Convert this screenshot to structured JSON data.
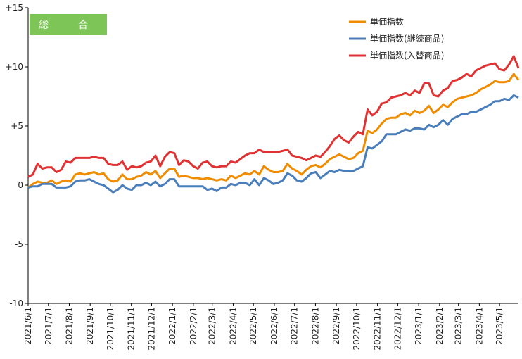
{
  "colors": {
    "axis": "#000000",
    "badge": "#7dc557"
  },
  "badge_label": "総　合",
  "chart_data": {
    "type": "line",
    "title": "",
    "xlabel": "",
    "ylabel": "",
    "ylim": [
      -10,
      15
    ],
    "yticks": [
      15,
      10,
      5,
      0,
      -5,
      -10
    ],
    "ytick_labels": [
      "+15",
      "+10",
      "+5",
      "0",
      "-5",
      "-10"
    ],
    "grid": false,
    "legend_position": "top-right",
    "x_tick_labels": [
      "2021/6/1",
      "2021/7/1",
      "2021/8/1",
      "2021/9/1",
      "2021/10/1",
      "2021/11/1",
      "2021/12/1",
      "2022/1/1",
      "2022/2/1",
      "2022/3/1",
      "2022/4/1",
      "2022/5/1",
      "2022/6/1",
      "2022/7/1",
      "2022/8/1",
      "2022/9/1",
      "2022/10/1",
      "2022/11/1",
      "2022/12/1",
      "2023/1/1",
      "2023/2/1",
      "2023/3/1",
      "2023/4/1",
      "2023/5/1"
    ],
    "x_start": "2021/6/1",
    "x_end": "2023/5/29",
    "series": [
      {
        "name": "単価指数",
        "color": "#f08c00",
        "values": [
          -0.2,
          0.1,
          0.3,
          0.2,
          0.2,
          0.4,
          0.1,
          0.3,
          0.4,
          0.3,
          0.9,
          1.0,
          0.9,
          1.0,
          1.1,
          0.9,
          1.0,
          0.5,
          0.3,
          0.4,
          0.9,
          0.5,
          0.5,
          0.7,
          0.8,
          1.1,
          0.9,
          1.2,
          0.6,
          1.0,
          1.4,
          1.4,
          0.7,
          0.8,
          0.7,
          0.6,
          0.6,
          0.5,
          0.6,
          0.5,
          0.4,
          0.5,
          0.4,
          0.8,
          0.6,
          0.8,
          1.0,
          0.9,
          1.2,
          0.9,
          1.6,
          1.3,
          1.1,
          1.1,
          1.2,
          1.8,
          1.4,
          1.2,
          0.9,
          1.3,
          1.6,
          1.7,
          1.5,
          1.8,
          2.2,
          2.4,
          2.6,
          2.4,
          2.2,
          2.3,
          2.7,
          2.9,
          4.6,
          4.4,
          4.7,
          5.2,
          5.6,
          5.7,
          5.7,
          6.0,
          6.1,
          5.9,
          6.3,
          6.1,
          6.3,
          6.7,
          6.1,
          6.4,
          6.8,
          6.6,
          7.0,
          7.3,
          7.4,
          7.5,
          7.6,
          7.8,
          8.1,
          8.3,
          8.5,
          8.8,
          8.7,
          8.7,
          8.8,
          9.4,
          8.9
        ]
      },
      {
        "name": "単価指数(継続商品)",
        "color": "#4a7ebb",
        "values": [
          -0.2,
          -0.1,
          -0.1,
          0.1,
          0.1,
          0.1,
          -0.2,
          -0.2,
          -0.2,
          -0.1,
          0.3,
          0.4,
          0.4,
          0.5,
          0.3,
          0.1,
          0.0,
          -0.3,
          -0.6,
          -0.4,
          0.0,
          -0.3,
          -0.4,
          0.0,
          0.0,
          0.2,
          0.0,
          0.3,
          -0.1,
          0.1,
          0.5,
          0.5,
          -0.1,
          -0.1,
          -0.1,
          -0.1,
          -0.1,
          -0.1,
          -0.4,
          -0.3,
          -0.5,
          -0.2,
          -0.2,
          0.1,
          0.0,
          0.2,
          0.2,
          0.0,
          0.5,
          0.0,
          0.6,
          0.4,
          0.1,
          0.2,
          0.4,
          1.0,
          0.8,
          0.4,
          0.3,
          0.6,
          1.0,
          1.1,
          0.6,
          0.9,
          1.2,
          1.1,
          1.3,
          1.2,
          1.2,
          1.2,
          1.4,
          1.6,
          3.2,
          3.1,
          3.4,
          3.7,
          4.3,
          4.3,
          4.3,
          4.5,
          4.7,
          4.6,
          4.8,
          4.8,
          4.7,
          5.1,
          4.9,
          5.1,
          5.5,
          5.1,
          5.6,
          5.8,
          6.0,
          6.0,
          6.2,
          6.2,
          6.4,
          6.6,
          6.8,
          7.1,
          7.1,
          7.3,
          7.2,
          7.6,
          7.4
        ]
      },
      {
        "name": "単価指数(入替商品)",
        "color": "#e03232",
        "values": [
          0.7,
          0.9,
          1.8,
          1.4,
          1.5,
          1.5,
          1.1,
          1.3,
          2.0,
          1.9,
          2.3,
          2.3,
          2.3,
          2.3,
          2.4,
          2.3,
          2.3,
          1.8,
          1.7,
          1.7,
          2.0,
          1.3,
          1.6,
          1.5,
          1.6,
          1.9,
          2.0,
          2.5,
          1.6,
          2.4,
          2.8,
          2.7,
          1.7,
          2.1,
          2.0,
          1.6,
          1.4,
          1.9,
          2.0,
          1.6,
          1.5,
          1.6,
          1.6,
          2.0,
          1.9,
          2.2,
          2.5,
          2.7,
          2.7,
          3.0,
          2.8,
          2.8,
          2.8,
          2.8,
          2.9,
          3.0,
          2.5,
          2.4,
          2.3,
          2.1,
          2.3,
          2.5,
          2.4,
          2.8,
          3.3,
          3.9,
          4.2,
          3.8,
          3.6,
          4.1,
          4.5,
          4.3,
          6.4,
          5.9,
          6.2,
          6.9,
          7.0,
          7.4,
          7.5,
          7.6,
          7.8,
          7.6,
          8.0,
          7.8,
          8.6,
          8.6,
          7.6,
          7.5,
          8.0,
          8.2,
          8.8,
          8.9,
          9.1,
          9.4,
          9.2,
          9.7,
          9.9,
          10.1,
          10.2,
          10.3,
          9.8,
          9.7,
          10.2,
          10.9,
          9.9
        ]
      }
    ]
  }
}
